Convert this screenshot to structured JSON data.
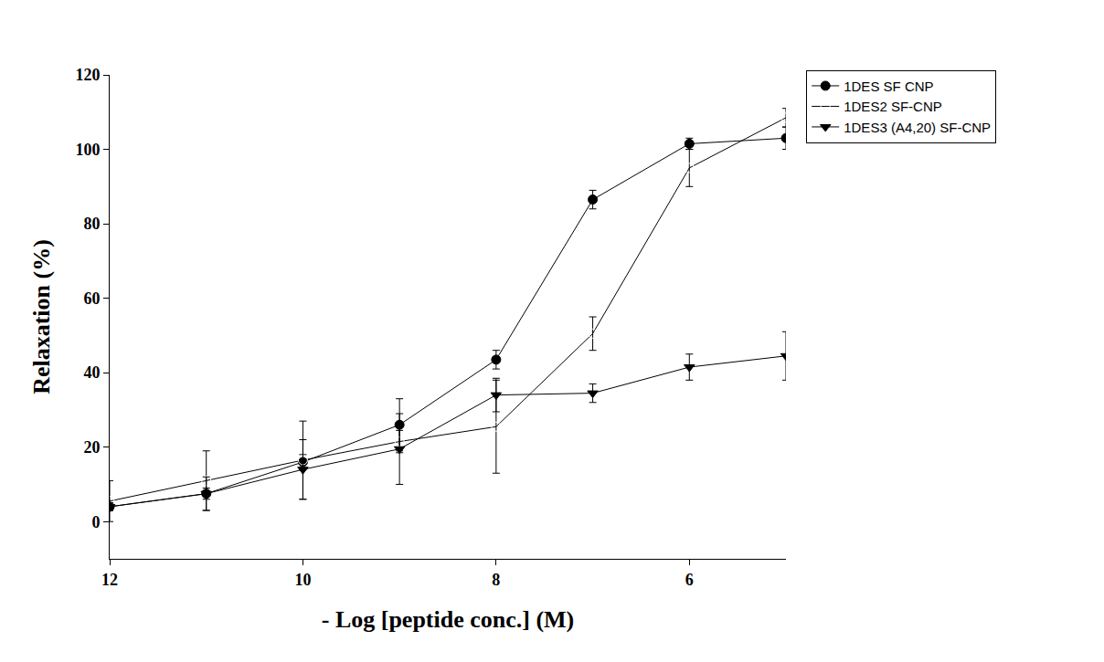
{
  "chart_data": {
    "type": "line",
    "x_label": "- Log [peptide conc.] (M)",
    "y_label": "Relaxation (%)",
    "x": [
      12,
      11,
      10,
      9,
      8,
      7,
      6,
      5
    ],
    "series": [
      {
        "name": "1DES SF CNP",
        "color": "#000000",
        "marker": "circle",
        "values": [
          4,
          7.5,
          16,
          26,
          43.5,
          86.5,
          101.5,
          103
        ],
        "errors": [
          1,
          1.5,
          2,
          7,
          2.5,
          2.5,
          1.5,
          3
        ]
      },
      {
        "name": "1DES2 SF-CNP",
        "color": "#000000",
        "marker": "circle-open",
        "values": [
          5.5,
          11,
          16.5,
          21.5,
          25.5,
          50.5,
          95,
          108.5
        ],
        "errors": [
          5.5,
          8,
          10.5,
          3,
          12.5,
          4.5,
          5,
          2.5
        ]
      },
      {
        "name": "1DES3 (A4,20) SF-CNP",
        "color": "#000000",
        "marker": "triangle-down",
        "values": [
          4,
          7.5,
          14,
          19.5,
          34,
          34.5,
          41.5,
          44.5
        ],
        "errors": [
          1,
          4.5,
          8,
          9.5,
          4.5,
          2.5,
          3.5,
          6.5
        ]
      }
    ],
    "xlim": [
      12,
      5
    ],
    "xticks": [
      12,
      10,
      8,
      6
    ],
    "ylim": [
      -10,
      120
    ],
    "yticks": [
      0,
      20,
      40,
      60,
      80,
      100,
      120
    ],
    "grid": false,
    "legend": "top right"
  }
}
